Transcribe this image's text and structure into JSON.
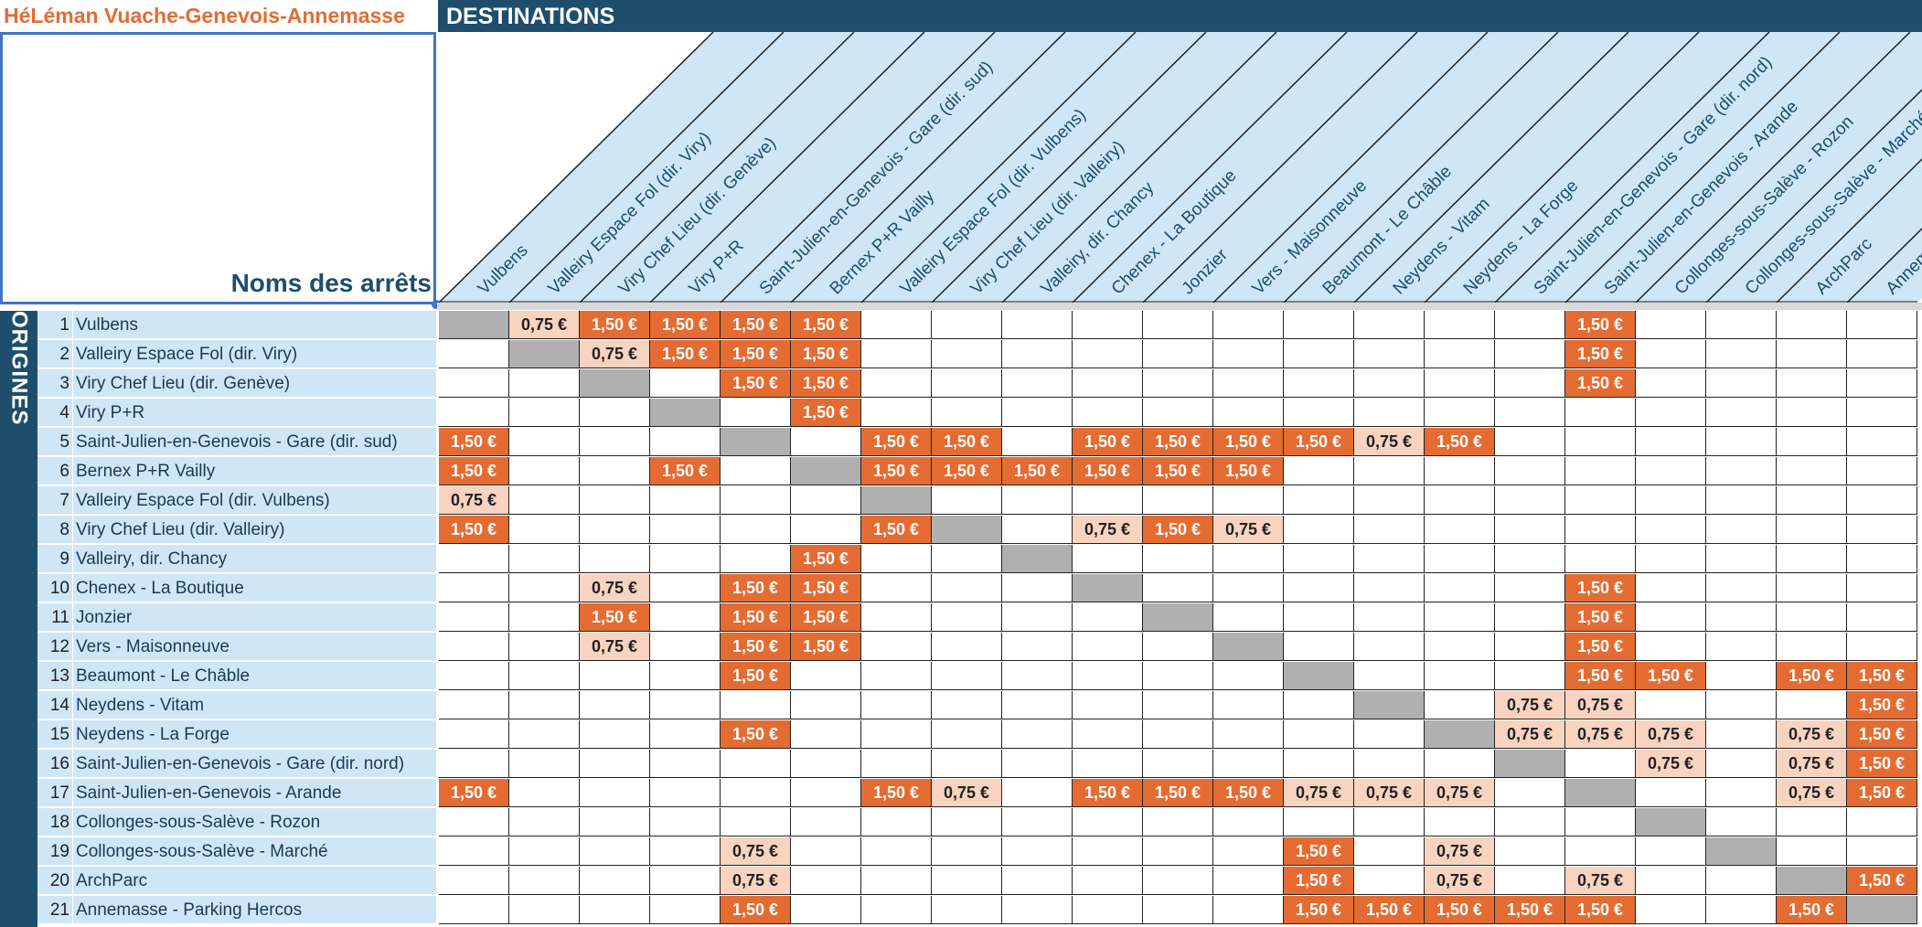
{
  "title": "HéLéman Vuache-Genevois-Annemasse",
  "destinations_label": "DESTINATIONS",
  "origines_label": "ORIGINES",
  "noms_label": "Noms des arrêts",
  "colors": {
    "header_navy": "#1e4e6c",
    "title_orange": "#e46c33",
    "price_150": "#e46c33",
    "price_075": "#f8d3bf",
    "diagonal_gray": "#b0b0b0",
    "row_blue": "#cfe6f7"
  },
  "destinations": [
    "Vulbens",
    "Valleiry Espace Fol (dir. Viry)",
    "Viry Chef Lieu (dir. Genève)",
    "Viry P+R",
    "Saint-Julien-en-Genevois - Gare (dir. sud)",
    "Bernex P+R Vailly",
    "Valleiry Espace Fol (dir. Vulbens)",
    "Viry Chef Lieu (dir. Valleiry)",
    "Valleiry, dir. Chancy",
    "Chenex - La Boutique",
    "Jonzier",
    "Vers - Maisonneuve",
    "Beaumont - Le Châble",
    "Neydens - Vitam",
    "Neydens - La Forge",
    "Saint-Julien-en-Genevois - Gare (dir. nord)",
    "Saint-Julien-en-Genevois - Arande",
    "Collonges-sous-Salève - Rozon",
    "Collonges-sous-Salève - Marché",
    "ArchParc",
    "Annemasse - Parking Hercos"
  ],
  "rows": [
    {
      "num": "1",
      "name": "Vulbens",
      "cells": [
        "d",
        "0,75 €",
        "1,50 €",
        "1,50 €",
        "1,50 €",
        "1,50 €",
        "",
        "",
        "",
        "",
        "",
        "",
        "",
        "",
        "",
        "",
        "1,50 €",
        "",
        "",
        "",
        ""
      ]
    },
    {
      "num": "2",
      "name": "Valleiry Espace Fol (dir. Viry)",
      "cells": [
        "",
        "d",
        "0,75 €",
        "1,50 €",
        "1,50 €",
        "1,50 €",
        "",
        "",
        "",
        "",
        "",
        "",
        "",
        "",
        "",
        "",
        "1,50 €",
        "",
        "",
        "",
        ""
      ]
    },
    {
      "num": "3",
      "name": "Viry Chef Lieu (dir. Genève)",
      "cells": [
        "",
        "",
        "d",
        "",
        "1,50 €",
        "1,50 €",
        "",
        "",
        "",
        "",
        "",
        "",
        "",
        "",
        "",
        "",
        "1,50 €",
        "",
        "",
        "",
        ""
      ]
    },
    {
      "num": "4",
      "name": "Viry P+R",
      "cells": [
        "",
        "",
        "",
        "d",
        "",
        "1,50 €",
        "",
        "",
        "",
        "",
        "",
        "",
        "",
        "",
        "",
        "",
        "",
        "",
        "",
        "",
        ""
      ]
    },
    {
      "num": "5",
      "name": "Saint-Julien-en-Genevois - Gare (dir. sud)",
      "cells": [
        "1,50 €",
        "",
        "",
        "",
        "d",
        "",
        "1,50 €",
        "1,50 €",
        "",
        "1,50 €",
        "1,50 €",
        "1,50 €",
        "1,50 €",
        "0,75 €",
        "1,50 €",
        "",
        "",
        "",
        "",
        "",
        ""
      ]
    },
    {
      "num": "6",
      "name": "Bernex P+R Vailly",
      "cells": [
        "1,50 €",
        "",
        "",
        "1,50 €",
        "",
        "d",
        "1,50 €",
        "1,50 €",
        "1,50 €",
        "1,50 €",
        "1,50 €",
        "1,50 €",
        "",
        "",
        "",
        "",
        "",
        "",
        "",
        "",
        ""
      ]
    },
    {
      "num": "7",
      "name": "Valleiry Espace Fol (dir. Vulbens)",
      "cells": [
        "0,75 €",
        "",
        "",
        "",
        "",
        "",
        "d",
        "",
        "",
        "",
        "",
        "",
        "",
        "",
        "",
        "",
        "",
        "",
        "",
        "",
        ""
      ]
    },
    {
      "num": "8",
      "name": "Viry Chef Lieu (dir. Valleiry)",
      "cells": [
        "1,50 €",
        "",
        "",
        "",
        "",
        "",
        "1,50 €",
        "d",
        "",
        "0,75 €",
        "1,50 €",
        "0,75 €",
        "",
        "",
        "",
        "",
        "",
        "",
        "",
        "",
        ""
      ]
    },
    {
      "num": "9",
      "name": "Valleiry, dir. Chancy",
      "cells": [
        "",
        "",
        "",
        "",
        "",
        "1,50 €",
        "",
        "",
        "d",
        "",
        "",
        "",
        "",
        "",
        "",
        "",
        "",
        "",
        "",
        "",
        ""
      ]
    },
    {
      "num": "10",
      "name": "Chenex - La Boutique",
      "cells": [
        "",
        "",
        "0,75 €",
        "",
        "1,50 €",
        "1,50 €",
        "",
        "",
        "",
        "d",
        "",
        "",
        "",
        "",
        "",
        "",
        "1,50 €",
        "",
        "",
        "",
        ""
      ]
    },
    {
      "num": "11",
      "name": "Jonzier",
      "cells": [
        "",
        "",
        "1,50 €",
        "",
        "1,50 €",
        "1,50 €",
        "",
        "",
        "",
        "",
        "d",
        "",
        "",
        "",
        "",
        "",
        "1,50 €",
        "",
        "",
        "",
        ""
      ]
    },
    {
      "num": "12",
      "name": "Vers - Maisonneuve",
      "cells": [
        "",
        "",
        "0,75 €",
        "",
        "1,50 €",
        "1,50 €",
        "",
        "",
        "",
        "",
        "",
        "d",
        "",
        "",
        "",
        "",
        "1,50 €",
        "",
        "",
        "",
        ""
      ]
    },
    {
      "num": "13",
      "name": "Beaumont - Le Châble",
      "cells": [
        "",
        "",
        "",
        "",
        "1,50 €",
        "",
        "",
        "",
        "",
        "",
        "",
        "",
        "d",
        "",
        "",
        "",
        "1,50 €",
        "1,50 €",
        "",
        "1,50 €",
        "1,50 €"
      ]
    },
    {
      "num": "14",
      "name": "Neydens - Vitam",
      "cells": [
        "",
        "",
        "",
        "",
        "",
        "",
        "",
        "",
        "",
        "",
        "",
        "",
        "",
        "d",
        "",
        "0,75 €",
        "0,75 €",
        "",
        "",
        "",
        "1,50 €"
      ]
    },
    {
      "num": "15",
      "name": "Neydens - La Forge",
      "cells": [
        "",
        "",
        "",
        "",
        "1,50 €",
        "",
        "",
        "",
        "",
        "",
        "",
        "",
        "",
        "",
        "d",
        "0,75 €",
        "0,75 €",
        "0,75 €",
        "",
        "0,75 €",
        "1,50 €"
      ]
    },
    {
      "num": "16",
      "name": "Saint-Julien-en-Genevois - Gare (dir. nord)",
      "cells": [
        "",
        "",
        "",
        "",
        "",
        "",
        "",
        "",
        "",
        "",
        "",
        "",
        "",
        "",
        "",
        "d",
        "",
        "0,75 €",
        "",
        "0,75 €",
        "1,50 €"
      ]
    },
    {
      "num": "17",
      "name": "Saint-Julien-en-Genevois - Arande",
      "cells": [
        "1,50 €",
        "",
        "",
        "",
        "",
        "",
        "1,50 €",
        "0,75 €",
        "",
        "1,50 €",
        "1,50 €",
        "1,50 €",
        "0,75 €",
        "0,75 €",
        "0,75 €",
        "",
        "d",
        "",
        "",
        "0,75 €",
        "1,50 €"
      ]
    },
    {
      "num": "18",
      "name": "Collonges-sous-Salève - Rozon",
      "cells": [
        "",
        "",
        "",
        "",
        "",
        "",
        "",
        "",
        "",
        "",
        "",
        "",
        "",
        "",
        "",
        "",
        "",
        "d",
        "",
        "",
        ""
      ]
    },
    {
      "num": "19",
      "name": "Collonges-sous-Salève - Marché",
      "cells": [
        "",
        "",
        "",
        "",
        "0,75 €",
        "",
        "",
        "",
        "",
        "",
        "",
        "",
        "1,50 €",
        "",
        "0,75 €",
        "",
        "",
        "",
        "d",
        "",
        ""
      ]
    },
    {
      "num": "20",
      "name": "ArchParc",
      "cells": [
        "",
        "",
        "",
        "",
        "0,75 €",
        "",
        "",
        "",
        "",
        "",
        "",
        "",
        "1,50 €",
        "",
        "0,75 €",
        "",
        "0,75 €",
        "",
        "",
        "d",
        "1,50 €"
      ]
    },
    {
      "num": "21",
      "name": "Annemasse - Parking Hercos",
      "cells": [
        "",
        "",
        "",
        "",
        "1,50 €",
        "",
        "",
        "",
        "",
        "",
        "",
        "",
        "1,50 €",
        "1,50 €",
        "1,50 €",
        "1,50 €",
        "1,50 €",
        "",
        "",
        "1,50 €",
        "d"
      ]
    }
  ]
}
